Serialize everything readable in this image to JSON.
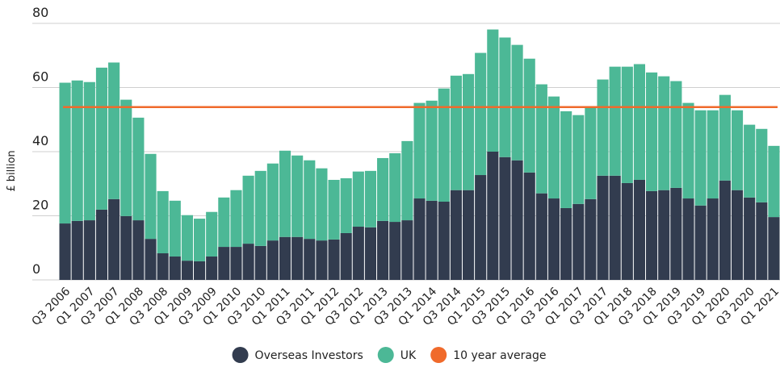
{
  "chart_data": {
    "type": "stacked_bar",
    "y_label": "£ billion",
    "categories": [
      "Q3 2006",
      null,
      "Q1 2007",
      null,
      "Q3 2007",
      null,
      "Q1 2008",
      null,
      "Q3 2008",
      null,
      "Q1 2009",
      null,
      "Q3 2009",
      null,
      "Q1 2010",
      null,
      "Q3 2010",
      null,
      "Q1 2011",
      null,
      "Q3 2011",
      null,
      "Q1 2012",
      null,
      "Q3 2012",
      null,
      "Q1 2013",
      null,
      "Q3 2013",
      null,
      "Q1 2014",
      null,
      "Q3 2014",
      null,
      "Q1 2015",
      null,
      "Q3 2015",
      null,
      "Q1 2016",
      null,
      "Q3 2016",
      null,
      "Q1 2017",
      null,
      "Q3 2017",
      null,
      "Q1 2018",
      null,
      "Q3 2018",
      null,
      "Q1 2019",
      null,
      "Q3 2019",
      null,
      "Q1 2020",
      null,
      "Q3 2020",
      null,
      "Q1 2021"
    ],
    "series": [
      {
        "name": "Overseas Investors",
        "color": "#323c4f",
        "values": [
          17.6,
          18.4,
          18.6,
          21.9,
          25.2,
          19.9,
          18.6,
          12.8,
          8.3,
          7.3,
          6.0,
          5.8,
          7.3,
          10.3,
          10.3,
          11.3,
          10.6,
          12.3,
          13.4,
          13.4,
          12.8,
          12.3,
          12.6,
          14.6,
          16.6,
          16.4,
          18.4,
          18.1,
          18.6,
          25.4,
          24.7,
          24.4,
          28.0,
          28.0,
          32.7,
          40.0,
          38.3,
          37.3,
          33.5,
          27.0,
          25.4,
          22.4,
          23.7,
          25.2,
          32.5,
          32.5,
          30.2,
          31.2,
          27.7,
          28.0,
          28.7,
          25.4,
          23.2,
          25.4,
          31.0,
          28.0,
          25.7,
          24.2,
          19.6
        ]
      },
      {
        "name": "UK",
        "color": "#4cb896",
        "values": [
          43.9,
          43.8,
          43.1,
          44.3,
          42.6,
          36.3,
          32.0,
          26.5,
          19.4,
          17.4,
          14.2,
          13.3,
          13.9,
          15.4,
          17.7,
          21.2,
          23.4,
          24.0,
          26.9,
          25.4,
          24.5,
          22.5,
          18.6,
          17.1,
          17.2,
          17.6,
          19.6,
          21.4,
          24.7,
          29.8,
          31.2,
          35.3,
          35.7,
          36.2,
          38.1,
          38.1,
          37.3,
          36.0,
          35.5,
          34.0,
          31.8,
          30.2,
          27.7,
          28.5,
          30.0,
          34.0,
          36.3,
          36.1,
          37.0,
          35.5,
          33.3,
          29.8,
          29.7,
          27.5,
          26.7,
          24.9,
          22.7,
          22.9,
          22.2
        ]
      }
    ],
    "average": {
      "name": "10 year average",
      "color": "#f06a2b",
      "value": 53.9
    },
    "ylim": [
      0,
      80
    ],
    "yticks": [
      0,
      20,
      40,
      60,
      80
    ],
    "grid": true,
    "legend": "bottom"
  }
}
